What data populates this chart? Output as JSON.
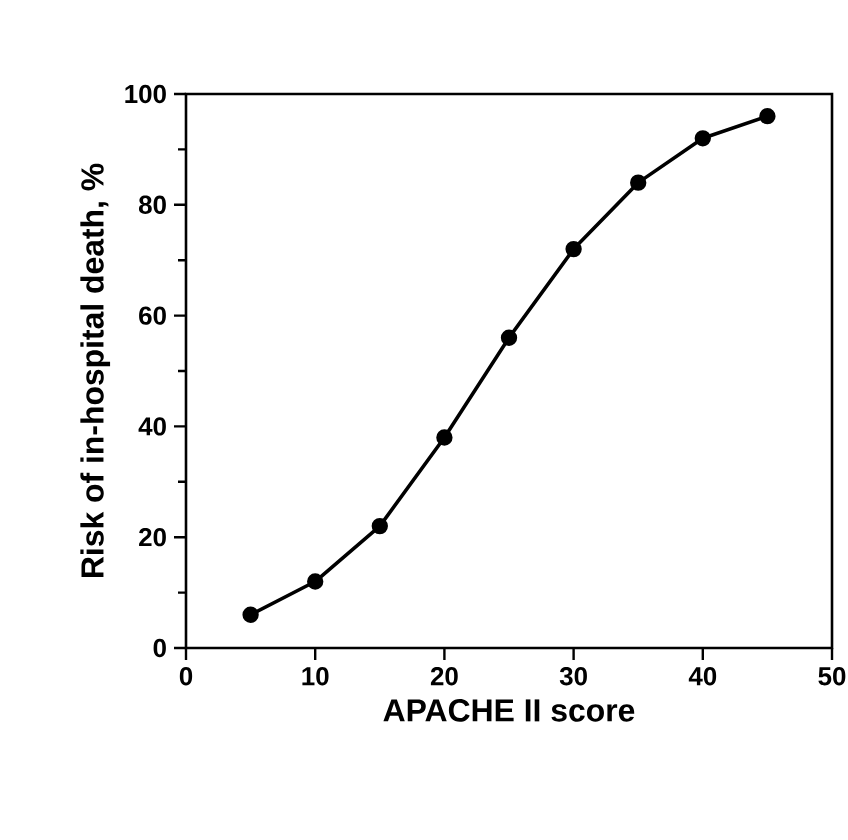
{
  "chart_data": {
    "type": "line",
    "xlabel": "APACHE II score",
    "ylabel": "Risk of in-hospital death, %",
    "x": [
      5,
      10,
      15,
      20,
      25,
      30,
      35,
      40,
      45
    ],
    "series": [
      {
        "color": "#000000",
        "values": [
          6,
          12,
          22,
          38,
          56,
          72,
          84,
          92,
          96
        ]
      }
    ],
    "xlim": [
      0,
      50
    ],
    "ylim": [
      0,
      100
    ],
    "xticks": [
      0,
      10,
      20,
      30,
      40,
      50
    ],
    "yticks": [
      0,
      20,
      40,
      60,
      80,
      100
    ],
    "marker": "circle",
    "line_style": "solid"
  }
}
